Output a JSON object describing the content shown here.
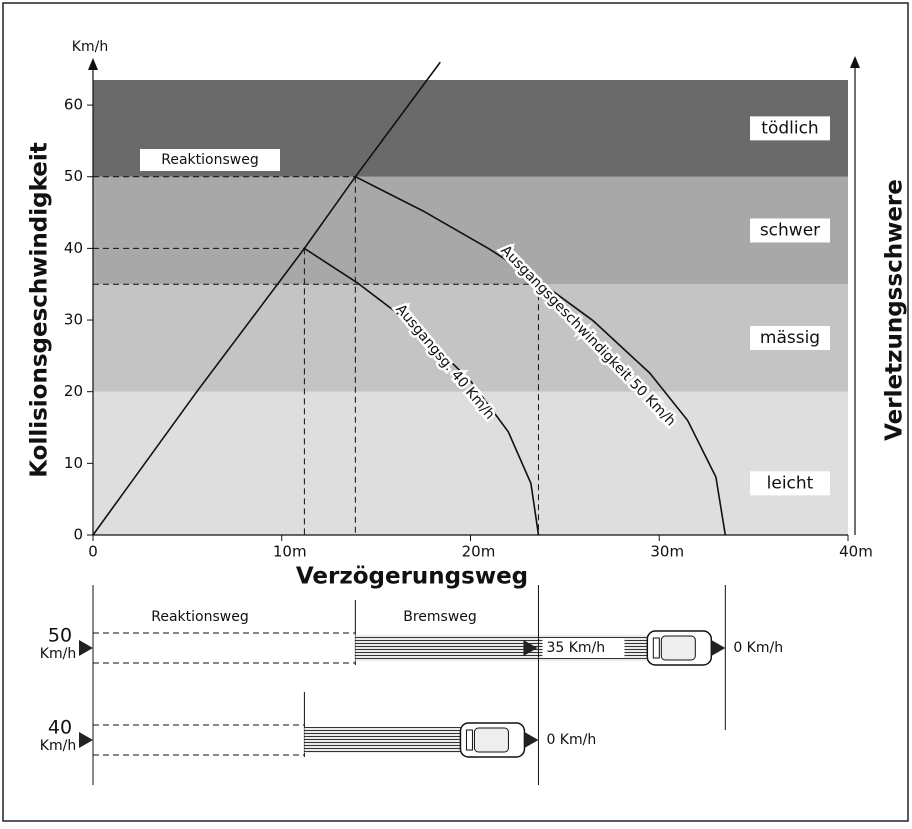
{
  "chart_data": {
    "type": "line",
    "y_axis_label": "Kollisionsgeschwindigkeit",
    "y_unit": "Km/h",
    "x_axis_label": "Verzögerungsweg",
    "y2_axis_label": "Verletzungsschwere",
    "xlim": [
      0,
      40
    ],
    "ylim": [
      0,
      63.5
    ],
    "xticks": [
      {
        "value": 0,
        "label": "0"
      },
      {
        "value": 10,
        "label": "10m"
      },
      {
        "value": 20,
        "label": "20m"
      },
      {
        "value": 30,
        "label": "30m"
      },
      {
        "value": 40,
        "label": "40m"
      }
    ],
    "yticks": [
      0,
      10,
      20,
      30,
      40,
      50,
      60
    ],
    "bands": [
      {
        "name": "leicht",
        "from": 0,
        "to": 20,
        "color": "#dedede"
      },
      {
        "name": "mässig",
        "from": 20,
        "to": 35,
        "color": "#c4c4c4"
      },
      {
        "name": "schwer",
        "from": 35,
        "to": 50,
        "color": "#a8a8a8"
      },
      {
        "name": "tödlich",
        "from": 50,
        "to": 63.5,
        "color": "#6a6a6a"
      }
    ],
    "series": [
      {
        "name": "Reaktionsweg",
        "color": "#111111",
        "x": [
          0,
          5.5,
          11.2,
          13.9,
          18.4
        ],
        "values": [
          0,
          20,
          40,
          50,
          66
        ]
      },
      {
        "name": "Ausgangsg. 40 Km/h",
        "color": "#111111",
        "x": [
          11.2,
          14,
          17,
          20,
          22,
          23.2,
          23.6
        ],
        "values": [
          40,
          35.2,
          29.2,
          21.5,
          14.4,
          7.2,
          0
        ]
      },
      {
        "name": "Ausgangsgeschwindigkeit 50 Km/h",
        "color": "#111111",
        "x": [
          13.9,
          17.5,
          21,
          23.6,
          26.5,
          29.5,
          31.5,
          33,
          33.5
        ],
        "values": [
          50,
          45.2,
          39.9,
          35.5,
          29.9,
          22.6,
          16,
          8.1,
          0
        ]
      }
    ],
    "guides": [
      {
        "x": 11.2,
        "y": 40
      },
      {
        "x": 13.9,
        "y": 50
      },
      {
        "x": 23.6,
        "y": 35
      }
    ],
    "diagram": {
      "reaction_header": "Reaktionsweg",
      "brake_header": "Bremsweg",
      "rows": [
        {
          "speed": "50",
          "unit": "Km/h",
          "reaction_end": 13.9,
          "mid_x": 23.6,
          "mid_label": "35 Km/h",
          "stop": 33.5,
          "end_label": "0 Km/h"
        },
        {
          "speed": "40",
          "unit": "Km/h",
          "reaction_end": 11.2,
          "stop": 23.6,
          "end_label": "0 Km/h"
        }
      ]
    }
  }
}
